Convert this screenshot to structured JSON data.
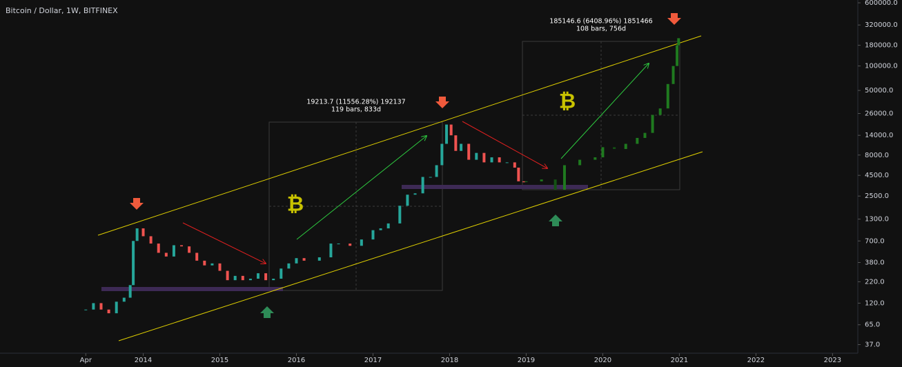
{
  "chart_data": {
    "type": "candlestick",
    "title": "Bitcoin / Dollar, 1W, BITFINEX",
    "log_scale": true,
    "grid": false,
    "xlim": [
      2012.13,
      2023.33
    ],
    "ylim": [
      29,
      650000
    ],
    "xticks": [
      {
        "value": 2013.25,
        "label": "Apr"
      },
      2014,
      2015,
      2016,
      2017,
      2018,
      2019,
      2020,
      2021,
      2022,
      2023
    ],
    "yticks": [
      {
        "value": 37,
        "label": "37.0"
      },
      {
        "value": 65,
        "label": "65.0"
      },
      {
        "value": 120,
        "label": "120.0"
      },
      {
        "value": 220,
        "label": "220.0"
      },
      {
        "value": 380,
        "label": "380.0"
      },
      {
        "value": 700,
        "label": "700.0"
      },
      {
        "value": 1300,
        "label": "1300.0"
      },
      {
        "value": 2500,
        "label": "2500.0"
      },
      {
        "value": 4500,
        "label": "4500.0"
      },
      {
        "value": 8000,
        "label": "8000.0"
      },
      {
        "value": 14000,
        "label": "14000.0"
      },
      {
        "value": 26000,
        "label": "26000.0"
      },
      {
        "value": 50000,
        "label": "50000.0"
      },
      {
        "value": 100000,
        "label": "100000.0"
      },
      {
        "value": 180000,
        "label": "180000.0"
      },
      {
        "value": 320000,
        "label": "320000.0"
      },
      {
        "value": 600000,
        "label": "600000.0"
      }
    ],
    "series": [
      {
        "color": "#26a69a",
        "down_color": "#ef5350",
        "x": [
          2013.25,
          2013.35,
          2013.45,
          2013.55,
          2013.65,
          2013.75,
          2013.83,
          2013.87,
          2013.92,
          2014.0,
          2014.1,
          2014.2,
          2014.3,
          2014.4,
          2014.5,
          2014.6,
          2014.7,
          2014.8,
          2014.9,
          2015.0,
          2015.1,
          2015.2,
          2015.3,
          2015.4,
          2015.5,
          2015.6,
          2015.7,
          2015.8,
          2015.9,
          2016.0,
          2016.1,
          2016.3,
          2016.45,
          2016.55,
          2016.7,
          2016.85,
          2017.0,
          2017.1,
          2017.2,
          2017.35,
          2017.45,
          2017.55,
          2017.65,
          2017.75,
          2017.83,
          2017.9,
          2017.96,
          2018.02,
          2018.08,
          2018.15,
          2018.25,
          2018.35,
          2018.45,
          2018.55,
          2018.65,
          2018.75,
          2018.85,
          2018.9,
          2018.97
        ],
        "values": [
          100,
          120,
          100,
          90,
          125,
          140,
          200,
          700,
          1000,
          800,
          650,
          500,
          450,
          620,
          600,
          500,
          400,
          350,
          370,
          300,
          230,
          260,
          230,
          240,
          280,
          230,
          240,
          320,
          370,
          430,
          400,
          440,
          650,
          650,
          610,
          730,
          950,
          1000,
          1150,
          1900,
          2600,
          2700,
          4300,
          4300,
          6000,
          11000,
          19000,
          14000,
          9000,
          11000,
          7000,
          8500,
          6500,
          7500,
          6500,
          6500,
          5600,
          3800,
          3700
        ]
      },
      {
        "color": "#1f7a1f",
        "down_color": "#145214",
        "x": [
          2019.0,
          2019.2,
          2019.38,
          2019.5,
          2019.7,
          2019.9,
          2020.0,
          2020.15,
          2020.3,
          2020.45,
          2020.55,
          2020.65,
          2020.75,
          2020.85,
          2020.92,
          2020.97,
          2020.99
        ],
        "values": [
          3800,
          4000,
          3000,
          6000,
          7000,
          7500,
          10000,
          9500,
          11000,
          13000,
          15000,
          25000,
          30000,
          60000,
          100000,
          180000,
          220000
        ]
      }
    ],
    "annotations": [
      {
        "text": "185146.6 (6408.96%) 1851466",
        "sub": "108 bars, 756d"
      },
      {
        "text": "19213.7 (11556.28%) 192137",
        "sub": "119 bars, 833d"
      }
    ],
    "symbols": [
      "₿",
      "₿"
    ]
  }
}
